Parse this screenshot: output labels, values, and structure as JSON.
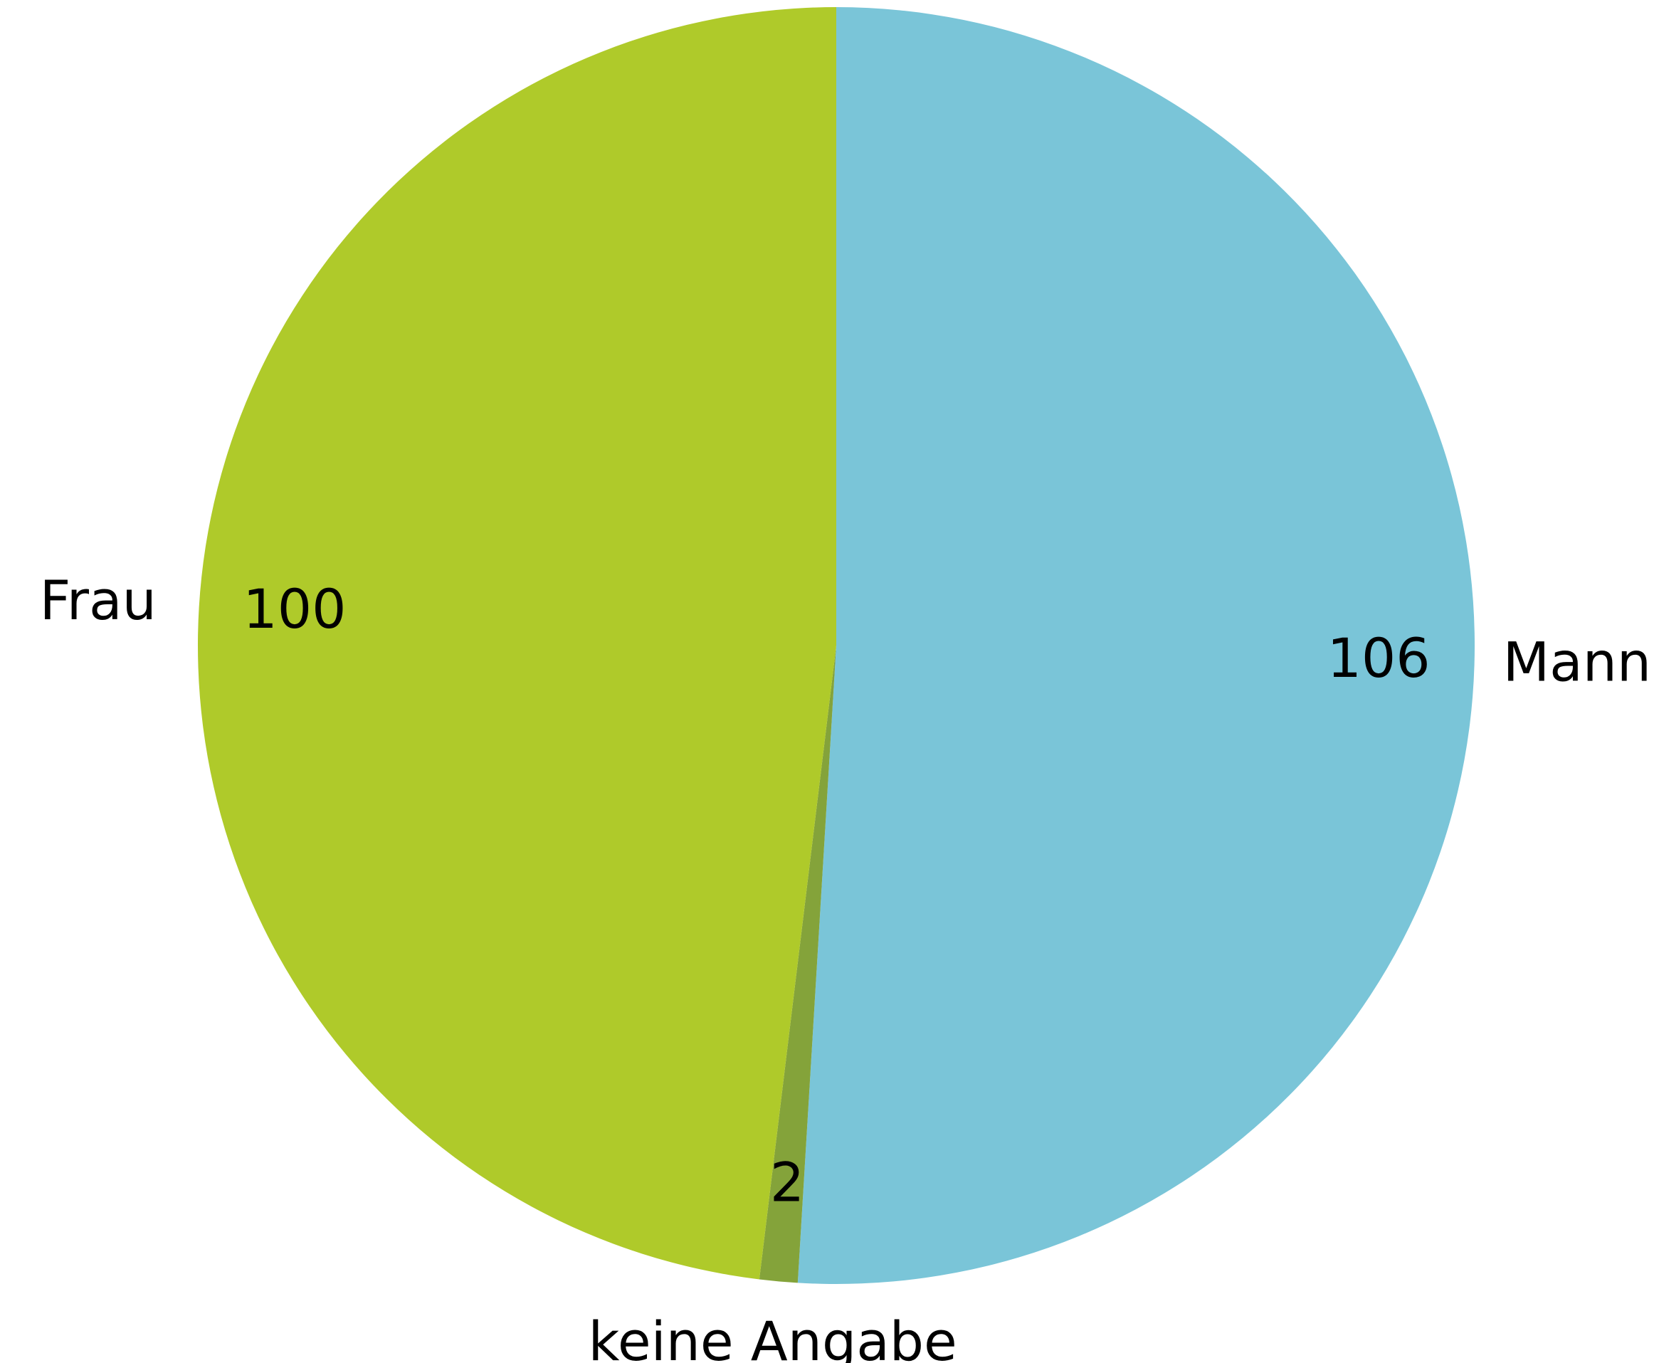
{
  "chart_data": {
    "type": "pie",
    "categories": [
      "Mann",
      "keine Angabe",
      "Frau"
    ],
    "values": [
      106,
      2,
      100
    ],
    "colors": [
      "#7ac5d8",
      "#84a33a",
      "#afca2a"
    ]
  }
}
